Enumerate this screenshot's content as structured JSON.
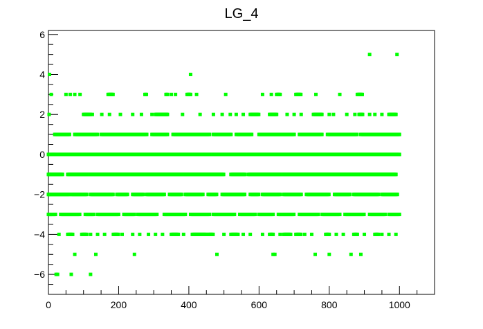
{
  "chart_data": {
    "type": "scatter",
    "title": "LG_4",
    "xlabel": "",
    "ylabel": "",
    "xlim": [
      0,
      1100
    ],
    "ylim": [
      -7,
      6.2
    ],
    "x_ticks": [
      0,
      200,
      400,
      600,
      800,
      1000
    ],
    "x_tick_labels": [
      "0",
      "200",
      "400",
      "600",
      "800",
      "1000"
    ],
    "y_ticks": [
      -6,
      -4,
      -2,
      0,
      2,
      4,
      6
    ],
    "y_tick_labels": [
      "−6",
      "−4",
      "−2",
      "0",
      "2",
      "4",
      "6"
    ],
    "marker_color": "#00ff00",
    "grid": false,
    "legend": "none",
    "series": [
      {
        "row_ranges": [
          {
            "y": 0,
            "x_ranges": [
              [
                0,
                1000
              ]
            ]
          },
          {
            "y": -1,
            "x_ranges": [
              [
                0,
                40
              ],
              [
                55,
                500
              ],
              [
                520,
                560
              ],
              [
                570,
                990
              ]
            ]
          },
          {
            "y": 1,
            "x_ranges": [
              [
                20,
                60
              ],
              [
                75,
                140
              ],
              [
                150,
                280
              ],
              [
                295,
                340
              ],
              [
                355,
                460
              ],
              [
                470,
                520
              ],
              [
                535,
                580
              ],
              [
                600,
                700
              ],
              [
                715,
                780
              ],
              [
                795,
                880
              ],
              [
                890,
                1000
              ]
            ]
          },
          {
            "y": -2,
            "x_ranges": [
              [
                0,
                60
              ],
              [
                65,
                110
              ],
              [
                120,
                185
              ],
              [
                195,
                225
              ],
              [
                240,
                270
              ],
              [
                280,
                330
              ],
              [
                345,
                380
              ],
              [
                390,
                440
              ],
              [
                455,
                480
              ],
              [
                495,
                560
              ],
              [
                575,
                600
              ],
              [
                610,
                660
              ],
              [
                670,
                720
              ],
              [
                735,
                800
              ],
              [
                815,
                860
              ],
              [
                870,
                940
              ],
              [
                950,
                995
              ]
            ]
          },
          {
            "y": -3,
            "x_ranges": [
              [
                0,
                20
              ],
              [
                35,
                90
              ],
              [
                105,
                130
              ],
              [
                140,
                200
              ],
              [
                215,
                245
              ],
              [
                255,
                310
              ],
              [
                330,
                390
              ],
              [
                405,
                460
              ],
              [
                470,
                530
              ],
              [
                545,
                590
              ],
              [
                600,
                640
              ],
              [
                655,
                700
              ],
              [
                715,
                770
              ],
              [
                780,
                830
              ],
              [
                845,
                900
              ],
              [
                915,
                960
              ],
              [
                970,
                1000
              ]
            ]
          },
          {
            "y": 2,
            "x_ranges": [
              [
                100,
                120
              ],
              [
                305,
                340
              ],
              [
                575,
                600
              ],
              [
                630,
                650
              ],
              [
                755,
                780
              ],
              [
                885,
                895
              ],
              [
                970,
                990
              ]
            ]
          },
          {
            "y": 3,
            "x_ranges": [
              [
                170,
                185
              ],
              [
                275,
                280
              ],
              [
                335,
                340
              ],
              [
                395,
                405
              ],
              [
                650,
                660
              ],
              [
                705,
                720
              ],
              [
                880,
                895
              ]
            ]
          },
          {
            "y": -4,
            "x_ranges": [
              [
                55,
                70
              ],
              [
                95,
                110
              ],
              [
                185,
                200
              ],
              [
                350,
                370
              ],
              [
                410,
                450
              ],
              [
                455,
                470
              ],
              [
                520,
                540
              ],
              [
                630,
                640
              ],
              [
                670,
                690
              ],
              [
                705,
                720
              ],
              [
                790,
                800
              ],
              [
                870,
                880
              ],
              [
                930,
                940
              ]
            ]
          }
        ],
        "points": [
          [
            3,
            4
          ],
          [
            2,
            2
          ],
          [
            8,
            3
          ],
          [
            0,
            -2
          ],
          [
            2,
            -1
          ],
          [
            14,
            0
          ],
          [
            5,
            -3
          ],
          [
            22,
            -6
          ],
          [
            26,
            -6
          ],
          [
            18,
            1
          ],
          [
            50,
            3
          ],
          [
            62,
            3
          ],
          [
            75,
            3
          ],
          [
            90,
            3
          ],
          [
            108,
            2
          ],
          [
            125,
            2
          ],
          [
            152,
            2
          ],
          [
            174,
            2
          ],
          [
            205,
            2
          ],
          [
            240,
            2
          ],
          [
            265,
            2
          ],
          [
            295,
            2
          ],
          [
            336,
            2
          ],
          [
            350,
            3
          ],
          [
            362,
            3
          ],
          [
            382,
            2
          ],
          [
            400,
            3
          ],
          [
            422,
            3
          ],
          [
            432,
            2
          ],
          [
            470,
            2
          ],
          [
            495,
            2
          ],
          [
            505,
            3
          ],
          [
            518,
            2
          ],
          [
            535,
            2
          ],
          [
            555,
            2
          ],
          [
            610,
            3
          ],
          [
            635,
            3
          ],
          [
            680,
            2
          ],
          [
            700,
            2
          ],
          [
            720,
            2
          ],
          [
            762,
            3
          ],
          [
            775,
            2
          ],
          [
            800,
            2
          ],
          [
            812,
            2
          ],
          [
            830,
            3
          ],
          [
            850,
            2
          ],
          [
            873,
            2
          ],
          [
            915,
            2
          ],
          [
            930,
            2
          ],
          [
            950,
            2
          ],
          [
            405,
            4
          ],
          [
            915,
            5
          ],
          [
            993,
            5
          ],
          [
            30,
            -4
          ],
          [
            120,
            -4
          ],
          [
            140,
            -4
          ],
          [
            160,
            -4
          ],
          [
            210,
            -4
          ],
          [
            240,
            -4
          ],
          [
            260,
            -4
          ],
          [
            285,
            -4
          ],
          [
            305,
            -4
          ],
          [
            325,
            -4
          ],
          [
            385,
            -4
          ],
          [
            500,
            -4
          ],
          [
            555,
            -4
          ],
          [
            575,
            -4
          ],
          [
            610,
            -4
          ],
          [
            660,
            -4
          ],
          [
            730,
            -4
          ],
          [
            750,
            -4
          ],
          [
            820,
            -4
          ],
          [
            840,
            -4
          ],
          [
            900,
            -4
          ],
          [
            950,
            -4
          ],
          [
            970,
            -4
          ],
          [
            990,
            -4
          ],
          [
            75,
            -5
          ],
          [
            135,
            -5
          ],
          [
            245,
            -5
          ],
          [
            480,
            -5
          ],
          [
            640,
            -5
          ],
          [
            645,
            -5
          ],
          [
            760,
            -5
          ],
          [
            800,
            -5
          ],
          [
            862,
            -5
          ],
          [
            890,
            -5
          ],
          [
            65,
            -6
          ],
          [
            120,
            -6
          ]
        ]
      }
    ]
  }
}
